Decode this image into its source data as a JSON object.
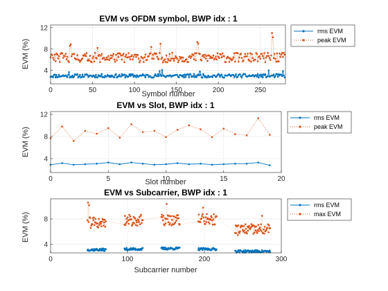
{
  "colors": {
    "rms": "#0072bd",
    "peak": "#d95319",
    "grid": "#e6e6e6",
    "axis": "#262626"
  },
  "chart_data": [
    {
      "type": "line",
      "title": "EVM vs OFDM symbol, BWP idx : 1",
      "xlabel": "Symbol number",
      "ylabel": "EVM (%)",
      "xlim": [
        0,
        280
      ],
      "ylim": [
        1.5,
        12.5
      ],
      "xticks": [
        0,
        50,
        100,
        150,
        200,
        250
      ],
      "yticks": [
        4,
        8,
        12
      ],
      "grid": true,
      "legend": "outside-right",
      "series": [
        {
          "name": "rms EVM",
          "style": "solid-dot",
          "x_range": [
            0,
            279
          ],
          "count": 280,
          "mean": 3.0,
          "spread": 0.35,
          "spikes": [
            [
              22,
              3.7
            ],
            [
              130,
              3.9
            ],
            [
              133,
              4.1
            ],
            [
              178,
              3.8
            ],
            [
              260,
              4.0
            ],
            [
              277,
              3.9
            ]
          ]
        },
        {
          "name": "peak EVM",
          "style": "dotted-square",
          "x_range": [
            0,
            279
          ],
          "count": 280,
          "mean": 6.4,
          "spread": 0.9,
          "spikes": [
            [
              23,
              8.6
            ],
            [
              24,
              8.9
            ],
            [
              56,
              8.2
            ],
            [
              120,
              8.4
            ],
            [
              131,
              9.0
            ],
            [
              175,
              9.3
            ],
            [
              176,
              9.0
            ],
            [
              264,
              11.0
            ],
            [
              265,
              10.2
            ]
          ]
        }
      ]
    },
    {
      "type": "line",
      "title": "EVM vs Slot, BWP idx : 1",
      "xlabel": "Slot number",
      "ylabel": "EVM (%)",
      "xlim": [
        0,
        20
      ],
      "ylim": [
        1.5,
        12.5
      ],
      "xticks": [
        0,
        5,
        10,
        15,
        20
      ],
      "yticks": [
        4,
        8,
        12
      ],
      "grid": true,
      "legend": "outside-right",
      "series": [
        {
          "name": "rms EVM",
          "style": "solid-dot",
          "x": [
            0,
            1,
            2,
            3,
            4,
            5,
            6,
            7,
            8,
            9,
            10,
            11,
            12,
            13,
            14,
            15,
            16,
            17,
            18,
            19
          ],
          "values": [
            2.9,
            3.2,
            2.9,
            3.0,
            3.1,
            3.3,
            3.0,
            3.3,
            3.1,
            2.9,
            3.0,
            3.2,
            3.0,
            3.1,
            2.9,
            3.0,
            3.1,
            3.1,
            3.3,
            2.8
          ]
        },
        {
          "name": "peak EVM",
          "style": "dotted-square",
          "x": [
            0,
            1,
            2,
            3,
            4,
            5,
            6,
            7,
            8,
            9,
            10,
            11,
            12,
            13,
            14,
            15,
            16,
            17,
            18,
            19
          ],
          "values": [
            7.7,
            9.8,
            7.2,
            9.0,
            8.5,
            9.5,
            7.8,
            10.2,
            8.8,
            9.0,
            7.9,
            9.2,
            10.0,
            9.3,
            7.9,
            9.4,
            8.4,
            8.2,
            11.3,
            8.3
          ]
        }
      ]
    },
    {
      "type": "scatter",
      "title": "EVM vs Subcarrier, BWP idx : 1",
      "xlabel": "Subcarrier number",
      "ylabel": "EVM (%)",
      "xlim": [
        0,
        300
      ],
      "ylim": [
        2.6,
        11.2
      ],
      "xticks": [
        0,
        100,
        200,
        300
      ],
      "yticks": [
        4,
        8
      ],
      "grid": true,
      "legend": "outside-right",
      "series": [
        {
          "name": "rms EVM",
          "style": "solid-dot",
          "bands": [
            [
              48,
              72,
              3.1
            ],
            [
              96,
              120,
              3.2
            ],
            [
              144,
              168,
              3.3
            ],
            [
              192,
              216,
              3.2
            ],
            [
              240,
              286,
              2.85
            ]
          ],
          "spread": 0.2
        },
        {
          "name": "max EVM",
          "style": "dotted-square",
          "bands": [
            [
              48,
              72,
              7.4
            ],
            [
              96,
              120,
              7.8
            ],
            [
              144,
              168,
              7.8
            ],
            [
              192,
              216,
              7.9
            ],
            [
              240,
              286,
              6.3
            ]
          ],
          "spread": 0.9,
          "spikes": [
            [
              49,
              10.6
            ],
            [
              50,
              10.2
            ],
            [
              151,
              10.4
            ],
            [
              198,
              9.8
            ],
            [
              275,
              8.5
            ]
          ]
        }
      ]
    }
  ]
}
